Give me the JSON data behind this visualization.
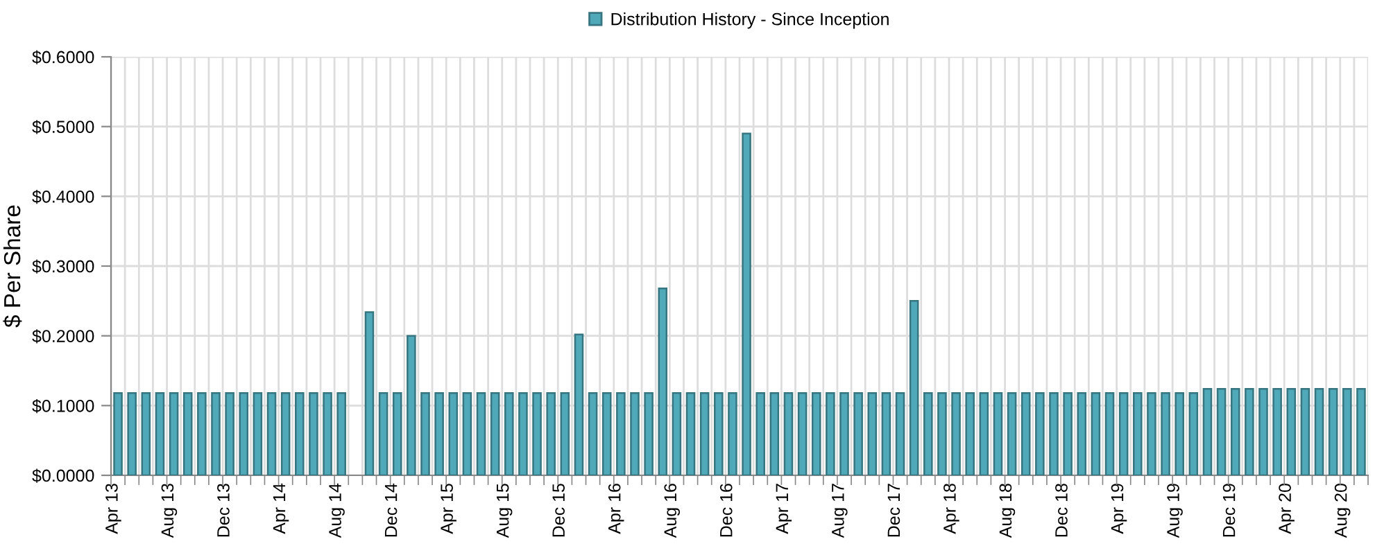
{
  "chart_data": {
    "type": "bar",
    "ylabel": "$ Per Share",
    "categories": [
      "Apr 13",
      null,
      null,
      null,
      "Aug 13",
      null,
      null,
      null,
      "Dec 13",
      null,
      null,
      null,
      "Apr 14",
      null,
      null,
      null,
      "Aug 14",
      null,
      null,
      null,
      "Dec 14",
      null,
      null,
      null,
      "Apr 15",
      null,
      null,
      null,
      "Aug 15",
      null,
      null,
      null,
      "Dec 15",
      null,
      null,
      null,
      "Apr 16",
      null,
      null,
      null,
      "Aug 16",
      null,
      null,
      null,
      "Dec 16",
      null,
      null,
      null,
      "Apr 17",
      null,
      null,
      null,
      "Aug 17",
      null,
      null,
      null,
      "Dec 17",
      null,
      null,
      null,
      "Apr 18",
      null,
      null,
      null,
      "Aug 18",
      null,
      null,
      null,
      "Dec 18",
      null,
      null,
      null,
      "Apr 19",
      null,
      null,
      null,
      "Aug 19",
      null,
      null,
      null,
      "Dec 19",
      null,
      null,
      null,
      "Apr 20",
      null,
      null,
      null,
      "Aug 20",
      null
    ],
    "series": [
      {
        "name": "Distribution History - Since Inception",
        "color": "#4fa9b8",
        "values": [
          0.118,
          0.118,
          0.118,
          0.118,
          0.118,
          0.118,
          0.118,
          0.118,
          0.118,
          0.118,
          0.118,
          0.118,
          0.118,
          0.118,
          0.118,
          0.118,
          0.118,
          null,
          0.234,
          0.118,
          0.118,
          0.2,
          0.118,
          0.118,
          0.118,
          0.118,
          0.118,
          0.118,
          0.118,
          0.118,
          0.118,
          0.118,
          0.118,
          0.202,
          0.118,
          0.118,
          0.118,
          0.118,
          0.118,
          0.268,
          0.118,
          0.118,
          0.118,
          0.118,
          0.118,
          0.49,
          0.118,
          0.118,
          0.118,
          0.118,
          0.118,
          0.118,
          0.118,
          0.118,
          0.118,
          0.118,
          0.118,
          0.25,
          0.118,
          0.118,
          0.118,
          0.118,
          0.118,
          0.118,
          0.118,
          0.118,
          0.118,
          0.118,
          0.118,
          0.118,
          0.118,
          0.118,
          0.118,
          0.118,
          0.118,
          0.118,
          0.118,
          0.118,
          0.124,
          0.124,
          0.124,
          0.124,
          0.124,
          0.124,
          0.124,
          0.124,
          0.124,
          0.124,
          0.124,
          0.124
        ]
      }
    ],
    "ylim": [
      0,
      0.6
    ],
    "yticks": [
      {
        "value": 0,
        "label": "$0.0000"
      },
      {
        "value": 0.1,
        "label": "$0.1000"
      },
      {
        "value": 0.2,
        "label": "$0.2000"
      },
      {
        "value": 0.3,
        "label": "$0.3000"
      },
      {
        "value": 0.4,
        "label": "$0.4000"
      },
      {
        "value": 0.5,
        "label": "$0.5000"
      },
      {
        "value": 0.6,
        "label": "$0.6000"
      }
    ],
    "grid": true,
    "legend": "top"
  }
}
